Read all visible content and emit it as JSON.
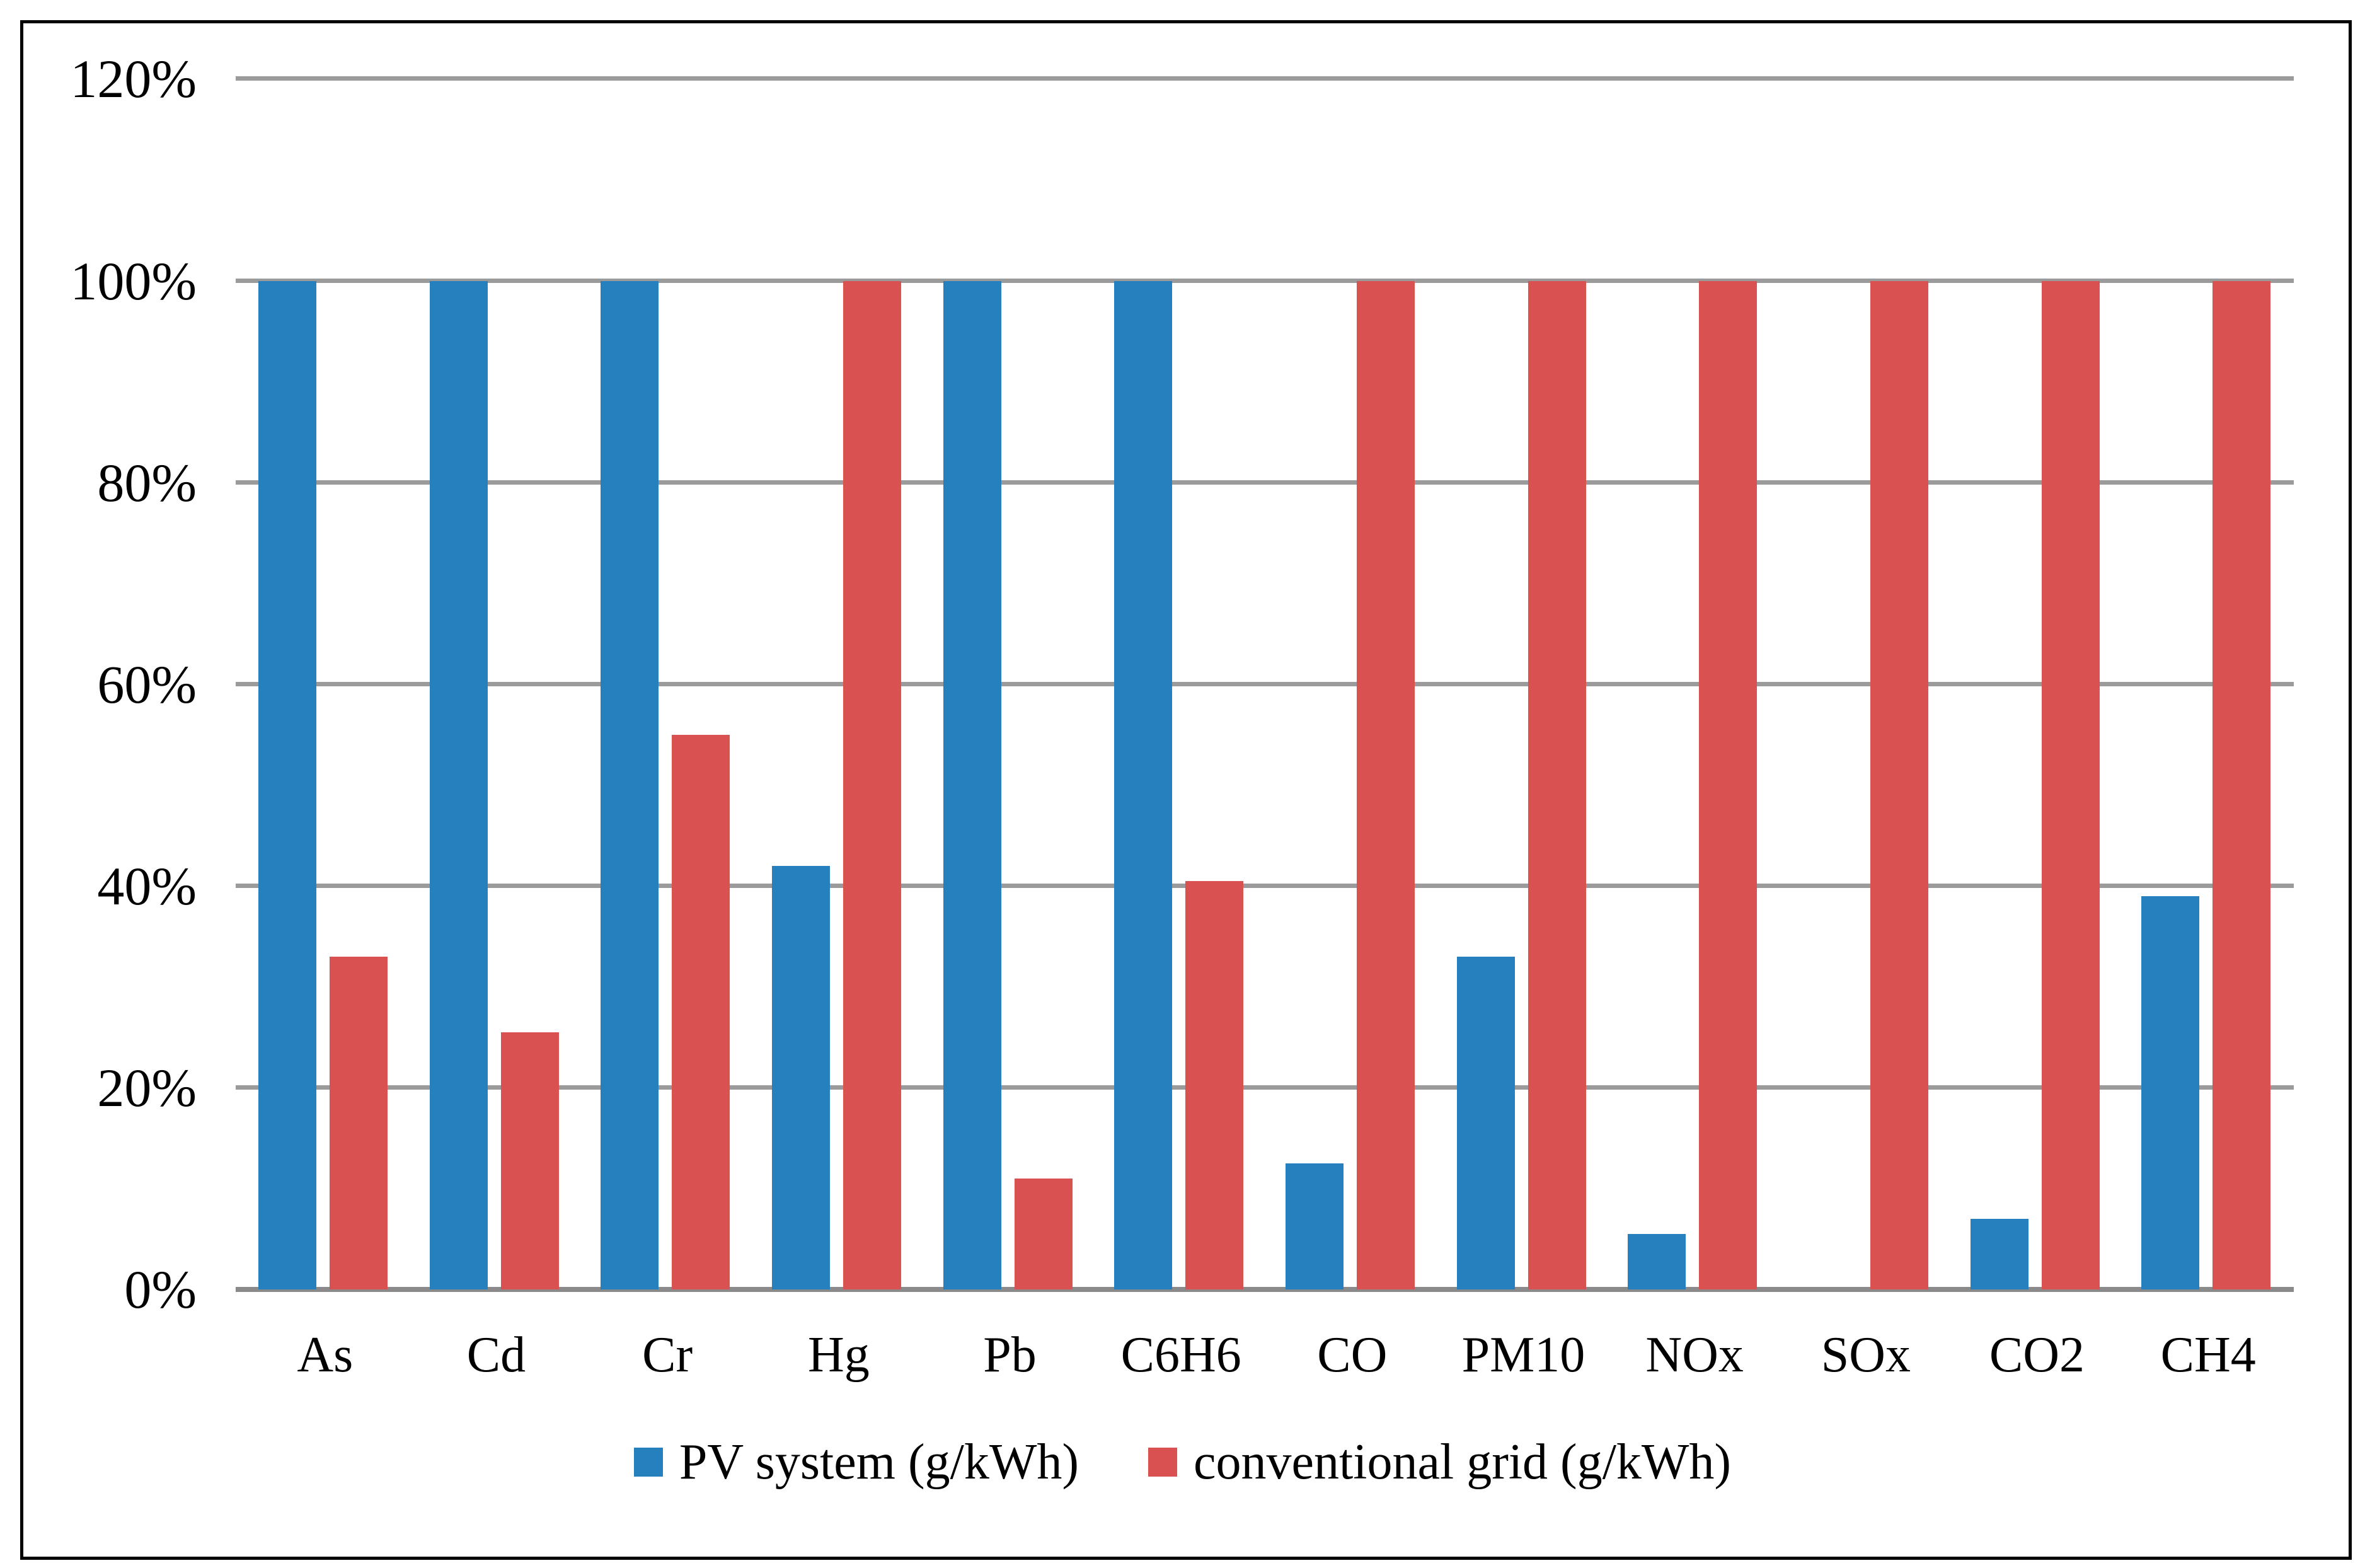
{
  "chart_data": {
    "type": "bar",
    "title": "",
    "xlabel": "",
    "ylabel": "",
    "categories": [
      "As",
      "Cd",
      "Cr",
      "Hg",
      "Pb",
      "C6H6",
      "CO",
      "PM10",
      "NOx",
      "SOx",
      "CO2",
      "CH4"
    ],
    "series": [
      {
        "name": "PV system (g/kWh)",
        "color": "#2780BE",
        "values": [
          100,
          100,
          100,
          42,
          100,
          100,
          12.5,
          33,
          5.5,
          0,
          7,
          39
        ]
      },
      {
        "name": "conventional grid (g/kWh)",
        "color": "#D95151",
        "values": [
          33,
          25.5,
          55,
          100,
          11,
          40.5,
          100,
          100,
          100,
          100,
          100,
          100
        ]
      }
    ],
    "ylim": [
      0,
      120
    ],
    "ytick_step": 20,
    "ytick_labels": [
      "0%",
      "20%",
      "40%",
      "60%",
      "80%",
      "100%",
      "120%"
    ],
    "grid": "horizontal-only",
    "legend_position": "bottom-center"
  },
  "colors": {
    "pv_series": "#2780BE",
    "grid_series": "#D95151",
    "gridline": "#9B9B9B",
    "axis_line": "#8A8A8A",
    "border": "#000000",
    "background": "#FFFFFF"
  }
}
